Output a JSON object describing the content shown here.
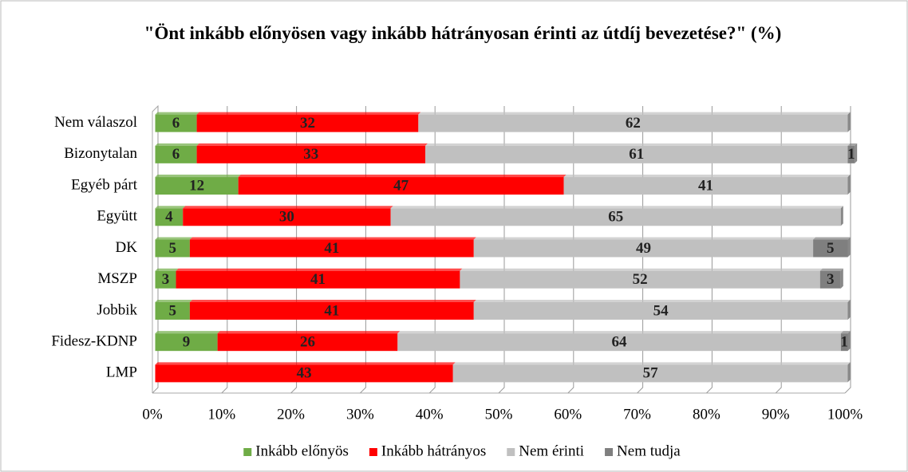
{
  "chart_data": {
    "type": "stacked_bar_horizontal",
    "title": "\"Önt inkább előnyösen vagy inkább hátrányosan érinti az útdíj bevezetése?\" (%)",
    "categories": [
      "Nem válaszol",
      "Bizonytalan",
      "Egyéb párt",
      "Együtt",
      "DK",
      "MSZP",
      "Jobbik",
      "Fidesz-KDNP",
      "LMP"
    ],
    "series": [
      {
        "name": "Inkább előnyös",
        "color": "#6fac46",
        "values": [
          6,
          6,
          12,
          4,
          5,
          3,
          5,
          9,
          0
        ]
      },
      {
        "name": "Inkább hátrányos",
        "color": "#ff0000",
        "values": [
          32,
          33,
          47,
          30,
          41,
          41,
          41,
          26,
          43
        ]
      },
      {
        "name": "Nem érinti",
        "color": "#c0c0c0",
        "values": [
          62,
          61,
          41,
          65,
          49,
          52,
          54,
          64,
          57
        ]
      },
      {
        "name": "Nem tudja",
        "color": "#7f7f7f",
        "values": [
          0,
          1,
          0,
          0,
          5,
          3,
          0,
          1,
          0
        ]
      }
    ],
    "xlim": [
      0,
      100
    ],
    "xticks": [
      {
        "value": 0,
        "label": "0%"
      },
      {
        "value": 10,
        "label": "10%"
      },
      {
        "value": 20,
        "label": "20%"
      },
      {
        "value": 30,
        "label": "30%"
      },
      {
        "value": 40,
        "label": "40%"
      },
      {
        "value": 50,
        "label": "50%"
      },
      {
        "value": 60,
        "label": "60%"
      },
      {
        "value": 70,
        "label": "70%"
      },
      {
        "value": 80,
        "label": "80%"
      },
      {
        "value": 90,
        "label": "90%"
      },
      {
        "value": 100,
        "label": "100%"
      }
    ],
    "grid": true,
    "legend": "bottom"
  }
}
